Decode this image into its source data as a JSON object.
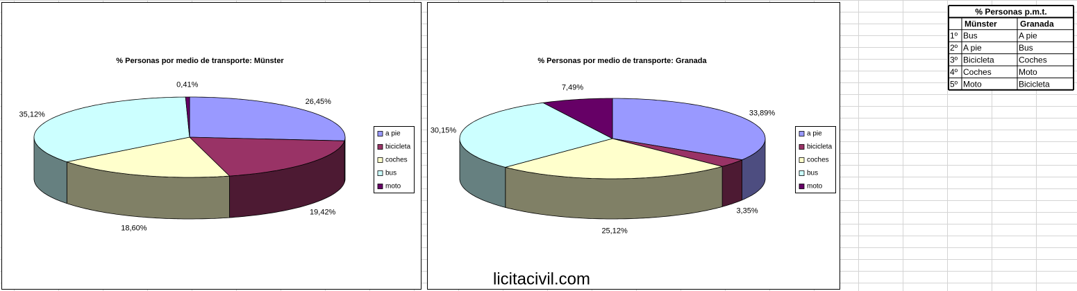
{
  "chart_data": [
    {
      "type": "pie3d",
      "title": "% Personas por medio de transporte: Münster",
      "categories": [
        "a pie",
        "bicicleta",
        "coches",
        "bus",
        "moto"
      ],
      "values": [
        26.45,
        19.42,
        18.6,
        35.12,
        0.41
      ],
      "value_labels": [
        "26,45%",
        "19,42%",
        "18,60%",
        "35,12%",
        "0,41%"
      ],
      "colors": [
        "#9999ff",
        "#993366",
        "#ffffcc",
        "#ccffff",
        "#660066"
      ]
    },
    {
      "type": "pie3d",
      "title": "% Personas por medio de transporte: Granada",
      "categories": [
        "a pie",
        "bicicleta",
        "coches",
        "bus",
        "moto"
      ],
      "values": [
        33.89,
        3.35,
        25.12,
        30.15,
        7.49
      ],
      "value_labels": [
        "33,89%",
        "3,35%",
        "25,12%",
        "30,15%",
        "7,49%"
      ],
      "colors": [
        "#9999ff",
        "#993366",
        "#ffffcc",
        "#ccffff",
        "#660066"
      ]
    }
  ],
  "table": {
    "title": "% Personas p.m.t.",
    "header": [
      "Münster",
      "Granada"
    ],
    "rows": [
      [
        "1º",
        "Bus",
        "A pie"
      ],
      [
        "2º",
        "A pie",
        "Bus"
      ],
      [
        "3º",
        "Bicicleta",
        "Coches"
      ],
      [
        "4º",
        "Coches",
        "Moto"
      ],
      [
        "5º",
        "Moto",
        "Bicicleta"
      ]
    ]
  },
  "watermark": "licitacivil.com"
}
